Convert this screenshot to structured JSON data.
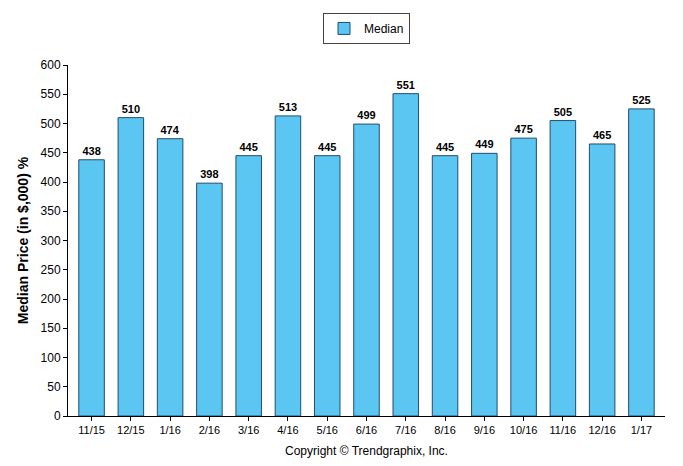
{
  "chart_data": {
    "type": "bar",
    "categories": [
      "11/15",
      "12/15",
      "1/16",
      "2/16",
      "3/16",
      "4/16",
      "5/16",
      "6/16",
      "7/16",
      "8/16",
      "9/16",
      "10/16",
      "11/16",
      "12/16",
      "1/17"
    ],
    "series": [
      {
        "name": "Median",
        "color": "#5cc6f2",
        "values": [
          438,
          510,
          474,
          398,
          445,
          513,
          445,
          499,
          551,
          445,
          449,
          475,
          505,
          465,
          525
        ]
      }
    ],
    "ylabel": "Median Price (in $,000) %",
    "annotations": [
      "Copyright © Trendgraphix, Inc."
    ],
    "ylim": [
      0,
      600
    ],
    "yticks": [
      0,
      50,
      100,
      150,
      200,
      250,
      300,
      350,
      400,
      450,
      500,
      550,
      600
    ],
    "grid": false,
    "legend": "top",
    "data_labels": true
  }
}
